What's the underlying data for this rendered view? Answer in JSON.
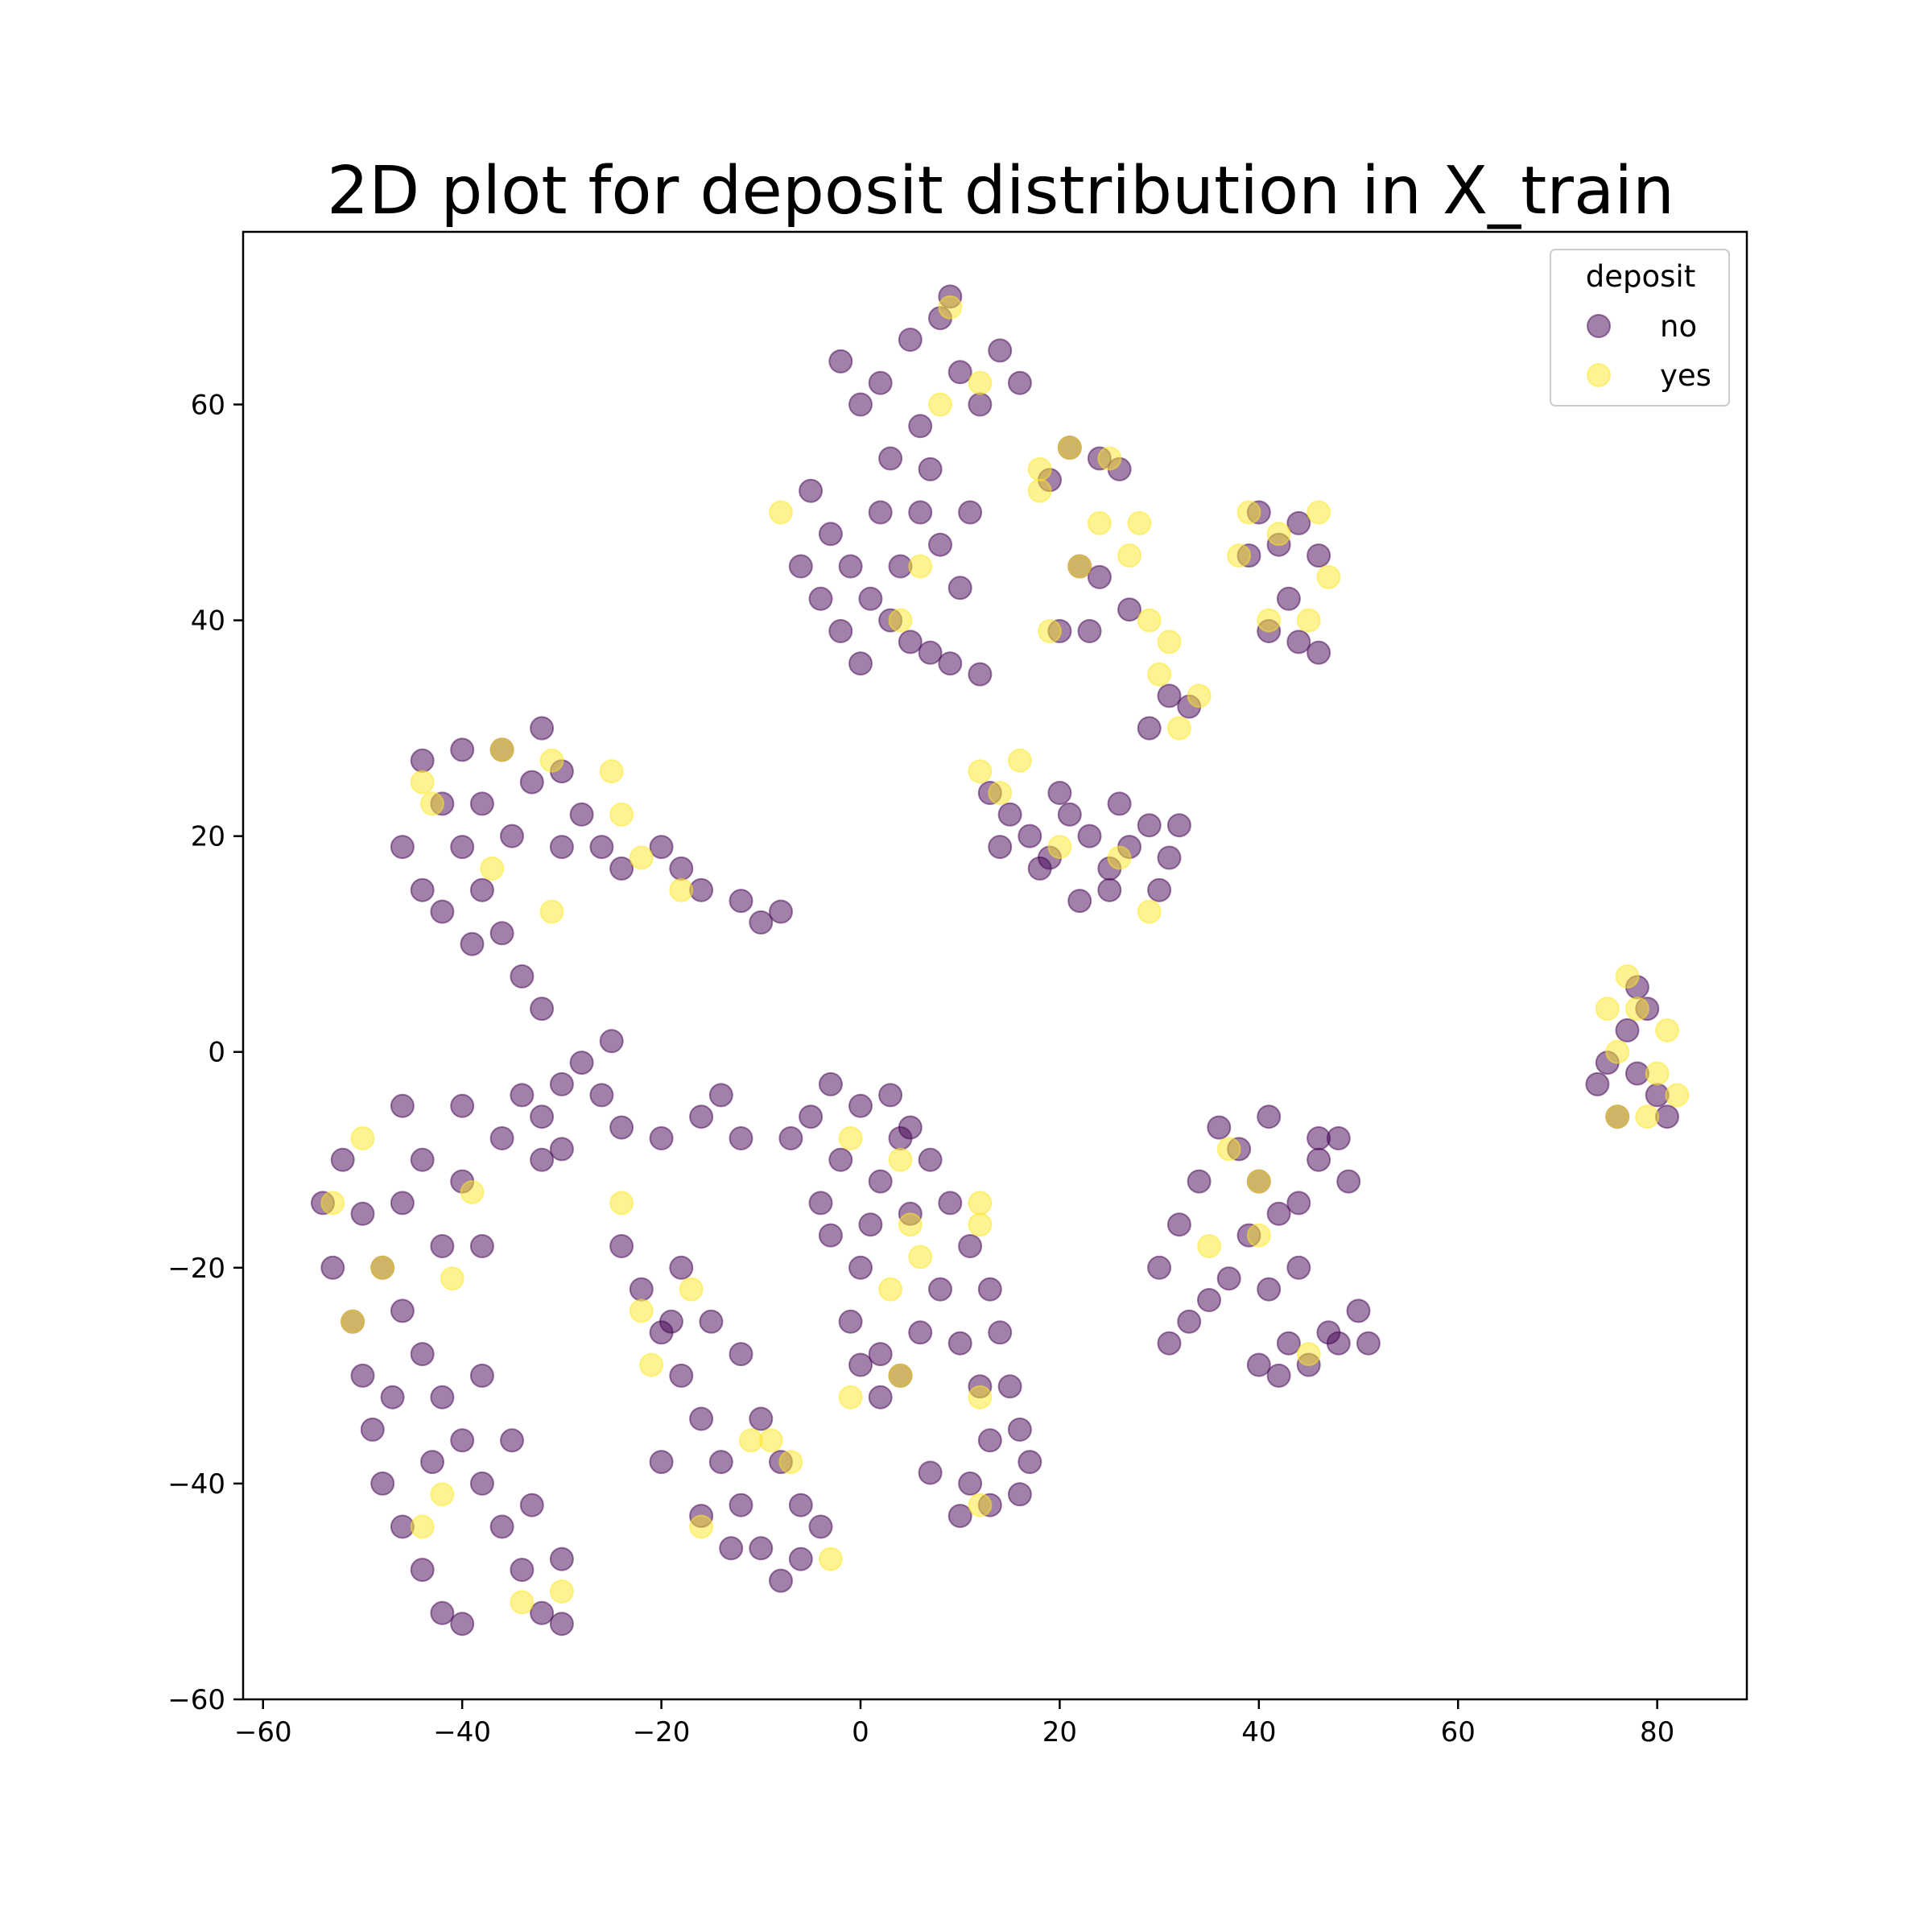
{
  "chart_data": {
    "type": "scatter",
    "title": "2D plot for deposit distribution in X_train",
    "xlabel": "",
    "ylabel": "",
    "xlim": [
      -62,
      89
    ],
    "ylim": [
      -60,
      76
    ],
    "x_ticks": [
      -60,
      -40,
      -20,
      0,
      20,
      40,
      60,
      80
    ],
    "y_ticks": [
      -60,
      -40,
      -20,
      0,
      20,
      40,
      60
    ],
    "x_tick_labels": [
      "−60",
      "−40",
      "−20",
      "0",
      "20",
      "40",
      "60",
      "80"
    ],
    "y_tick_labels": [
      "−60",
      "−40",
      "−20",
      "0",
      "20",
      "40",
      "60"
    ],
    "grid": false,
    "legend": {
      "title": "deposit",
      "placement": "top-right",
      "entries": [
        "no",
        "yes"
      ]
    },
    "colors": {
      "no": "#440154",
      "yes": "#fde725"
    },
    "marker_alpha": 0.5,
    "series": [
      {
        "name": "no",
        "points": [
          [
            2,
            62
          ],
          [
            5,
            66
          ],
          [
            8,
            68
          ],
          [
            10,
            63
          ],
          [
            12,
            60
          ],
          [
            14,
            65
          ],
          [
            6,
            58
          ],
          [
            3,
            55
          ],
          [
            0,
            60
          ],
          [
            -2,
            64
          ],
          [
            16,
            62
          ],
          [
            9,
            70
          ],
          [
            -5,
            52
          ],
          [
            -3,
            48
          ],
          [
            -1,
            45
          ],
          [
            1,
            42
          ],
          [
            3,
            40
          ],
          [
            5,
            38
          ],
          [
            7,
            37
          ],
          [
            4,
            45
          ],
          [
            6,
            50
          ],
          [
            8,
            47
          ],
          [
            10,
            43
          ],
          [
            2,
            50
          ],
          [
            -4,
            42
          ],
          [
            -6,
            45
          ],
          [
            0,
            36
          ],
          [
            9,
            36
          ],
          [
            12,
            35
          ],
          [
            -2,
            39
          ],
          [
            11,
            50
          ],
          [
            7,
            54
          ],
          [
            21,
            56
          ],
          [
            24,
            55
          ],
          [
            26,
            54
          ],
          [
            19,
            53
          ],
          [
            22,
            45
          ],
          [
            24,
            44
          ],
          [
            20,
            39
          ],
          [
            23,
            39
          ],
          [
            27,
            41
          ],
          [
            31,
            33
          ],
          [
            33,
            32
          ],
          [
            29,
            30
          ],
          [
            40,
            50
          ],
          [
            42,
            47
          ],
          [
            44,
            49
          ],
          [
            46,
            46
          ],
          [
            39,
            46
          ],
          [
            41,
            39
          ],
          [
            44,
            38
          ],
          [
            46,
            37
          ],
          [
            43,
            42
          ],
          [
            13,
            24
          ],
          [
            15,
            22
          ],
          [
            17,
            20
          ],
          [
            19,
            18
          ],
          [
            21,
            22
          ],
          [
            23,
            20
          ],
          [
            25,
            17
          ],
          [
            27,
            19
          ],
          [
            29,
            21
          ],
          [
            31,
            18
          ],
          [
            30,
            15
          ],
          [
            22,
            14
          ],
          [
            18,
            17
          ],
          [
            14,
            19
          ],
          [
            20,
            24
          ],
          [
            26,
            23
          ],
          [
            32,
            21
          ],
          [
            25,
            15
          ],
          [
            -44,
            27
          ],
          [
            -42,
            23
          ],
          [
            -40,
            19
          ],
          [
            -38,
            15
          ],
          [
            -36,
            11
          ],
          [
            -34,
            7
          ],
          [
            -32,
            4
          ],
          [
            -46,
            19
          ],
          [
            -44,
            15
          ],
          [
            -40,
            28
          ],
          [
            -36,
            28
          ],
          [
            -32,
            30
          ],
          [
            -30,
            26
          ],
          [
            -28,
            22
          ],
          [
            -26,
            19
          ],
          [
            -24,
            17
          ],
          [
            -20,
            19
          ],
          [
            -18,
            17
          ],
          [
            -16,
            15
          ],
          [
            -12,
            14
          ],
          [
            -10,
            12
          ],
          [
            -8,
            13
          ],
          [
            -38,
            23
          ],
          [
            -35,
            20
          ],
          [
            -30,
            19
          ],
          [
            -33,
            25
          ],
          [
            -42,
            13
          ],
          [
            -39,
            10
          ],
          [
            -52,
            -10
          ],
          [
            -50,
            -15
          ],
          [
            -48,
            -20
          ],
          [
            -46,
            -24
          ],
          [
            -44,
            -28
          ],
          [
            -42,
            -32
          ],
          [
            -40,
            -36
          ],
          [
            -38,
            -40
          ],
          [
            -36,
            -44
          ],
          [
            -34,
            -48
          ],
          [
            -32,
            -52
          ],
          [
            -30,
            -53
          ],
          [
            -51,
            -25
          ],
          [
            -50,
            -30
          ],
          [
            -49,
            -35
          ],
          [
            -48,
            -40
          ],
          [
            -46,
            -44
          ],
          [
            -44,
            -48
          ],
          [
            -42,
            -52
          ],
          [
            -40,
            -53
          ],
          [
            -54,
            -14
          ],
          [
            -53,
            -20
          ],
          [
            -44,
            -10
          ],
          [
            -40,
            -12
          ],
          [
            -38,
            -18
          ],
          [
            -42,
            -18
          ],
          [
            -46,
            -14
          ],
          [
            -36,
            -8
          ],
          [
            -40,
            -5
          ],
          [
            -46,
            -5
          ],
          [
            -47,
            -32
          ],
          [
            -43,
            -38
          ],
          [
            -38,
            -30
          ],
          [
            -35,
            -36
          ],
          [
            -33,
            -42
          ],
          [
            -30,
            -47
          ],
          [
            -34,
            -4
          ],
          [
            -32,
            -6
          ],
          [
            -30,
            -3
          ],
          [
            -28,
            -1
          ],
          [
            -26,
            -4
          ],
          [
            -24,
            -7
          ],
          [
            -30,
            -9
          ],
          [
            -32,
            -10
          ],
          [
            -25,
            1
          ],
          [
            -20,
            -8
          ],
          [
            -16,
            -6
          ],
          [
            -14,
            -4
          ],
          [
            -12,
            -8
          ],
          [
            -24,
            -18
          ],
          [
            -22,
            -22
          ],
          [
            -20,
            -26
          ],
          [
            -18,
            -30
          ],
          [
            -16,
            -34
          ],
          [
            -14,
            -38
          ],
          [
            -12,
            -42
          ],
          [
            -10,
            -46
          ],
          [
            -8,
            -49
          ],
          [
            -6,
            -47
          ],
          [
            -4,
            -44
          ],
          [
            -18,
            -20
          ],
          [
            -15,
            -25
          ],
          [
            -12,
            -28
          ],
          [
            -10,
            -34
          ],
          [
            -8,
            -38
          ],
          [
            -6,
            -42
          ],
          [
            -16,
            -43
          ],
          [
            -20,
            -38
          ],
          [
            -13,
            -46
          ],
          [
            -19,
            -25
          ],
          [
            -3,
            -3
          ],
          [
            0,
            -5
          ],
          [
            3,
            -4
          ],
          [
            5,
            -7
          ],
          [
            7,
            -10
          ],
          [
            9,
            -14
          ],
          [
            11,
            -18
          ],
          [
            13,
            -22
          ],
          [
            14,
            -26
          ],
          [
            15,
            -31
          ],
          [
            16,
            -35
          ],
          [
            17,
            -38
          ],
          [
            16,
            -41
          ],
          [
            13,
            -42
          ],
          [
            10,
            -43
          ],
          [
            7,
            -39
          ],
          [
            4,
            -8
          ],
          [
            2,
            -12
          ],
          [
            1,
            -16
          ],
          [
            0,
            -20
          ],
          [
            -1,
            -25
          ],
          [
            0,
            -29
          ],
          [
            2,
            -32
          ],
          [
            4,
            -30
          ],
          [
            6,
            -26
          ],
          [
            8,
            -22
          ],
          [
            10,
            -27
          ],
          [
            12,
            -31
          ],
          [
            5,
            -15
          ],
          [
            -2,
            -10
          ],
          [
            -5,
            -6
          ],
          [
            -7,
            -8
          ],
          [
            -4,
            -14
          ],
          [
            -3,
            -17
          ],
          [
            2,
            -28
          ],
          [
            11,
            -40
          ],
          [
            13,
            -36
          ],
          [
            36,
            -7
          ],
          [
            38,
            -9
          ],
          [
            40,
            -12
          ],
          [
            42,
            -15
          ],
          [
            44,
            -14
          ],
          [
            46,
            -10
          ],
          [
            48,
            -8
          ],
          [
            41,
            -6
          ],
          [
            39,
            -17
          ],
          [
            37,
            -21
          ],
          [
            35,
            -23
          ],
          [
            33,
            -25
          ],
          [
            31,
            -27
          ],
          [
            30,
            -20
          ],
          [
            32,
            -16
          ],
          [
            34,
            -12
          ],
          [
            44,
            -20
          ],
          [
            41,
            -22
          ],
          [
            42,
            -30
          ],
          [
            45,
            -29
          ],
          [
            48,
            -27
          ],
          [
            50,
            -24
          ],
          [
            51,
            -27
          ],
          [
            47,
            -26
          ],
          [
            43,
            -27
          ],
          [
            40,
            -29
          ],
          [
            46,
            -8
          ],
          [
            49,
            -12
          ],
          [
            75,
            -1
          ],
          [
            77,
            2
          ],
          [
            79,
            4
          ],
          [
            78,
            -2
          ],
          [
            80,
            -4
          ],
          [
            76,
            -6
          ],
          [
            81,
            -6
          ],
          [
            74,
            -3
          ],
          [
            78,
            6
          ]
        ]
      },
      {
        "name": "yes",
        "points": [
          [
            9,
            69
          ],
          [
            12,
            62
          ],
          [
            8,
            60
          ],
          [
            -8,
            50
          ],
          [
            6,
            45
          ],
          [
            4,
            40
          ],
          [
            18,
            54
          ],
          [
            21,
            56
          ],
          [
            25,
            55
          ],
          [
            18,
            52
          ],
          [
            24,
            49
          ],
          [
            27,
            46
          ],
          [
            28,
            49
          ],
          [
            22,
            45
          ],
          [
            29,
            40
          ],
          [
            31,
            38
          ],
          [
            30,
            35
          ],
          [
            32,
            30
          ],
          [
            34,
            33
          ],
          [
            19,
            39
          ],
          [
            39,
            50
          ],
          [
            42,
            48
          ],
          [
            46,
            50
          ],
          [
            38,
            46
          ],
          [
            41,
            40
          ],
          [
            45,
            40
          ],
          [
            47,
            44
          ],
          [
            12,
            26
          ],
          [
            16,
            27
          ],
          [
            14,
            24
          ],
          [
            20,
            19
          ],
          [
            26,
            18
          ],
          [
            29,
            13
          ],
          [
            -44,
            25
          ],
          [
            -43,
            23
          ],
          [
            -36,
            28
          ],
          [
            -31,
            27
          ],
          [
            -25,
            26
          ],
          [
            -24,
            22
          ],
          [
            -37,
            17
          ],
          [
            -31,
            13
          ],
          [
            -18,
            15
          ],
          [
            -22,
            18
          ],
          [
            -53,
            -14
          ],
          [
            -50,
            -8
          ],
          [
            -48,
            -20
          ],
          [
            -39,
            -13
          ],
          [
            -41,
            -21
          ],
          [
            -51,
            -25
          ],
          [
            -44,
            -44
          ],
          [
            -42,
            -41
          ],
          [
            -30,
            -50
          ],
          [
            -34,
            -51
          ],
          [
            -24,
            -14
          ],
          [
            -22,
            -24
          ],
          [
            -21,
            -29
          ],
          [
            -17,
            -22
          ],
          [
            -16,
            -44
          ],
          [
            -11,
            -36
          ],
          [
            -9,
            -36
          ],
          [
            -7,
            -38
          ],
          [
            -3,
            -47
          ],
          [
            -1,
            -8
          ],
          [
            4,
            -10
          ],
          [
            3,
            -22
          ],
          [
            -1,
            -32
          ],
          [
            4,
            -30
          ],
          [
            6,
            -19
          ],
          [
            5,
            -16
          ],
          [
            12,
            -14
          ],
          [
            12,
            -16
          ],
          [
            12,
            -32
          ],
          [
            12,
            -42
          ],
          [
            35,
            -18
          ],
          [
            37,
            -9
          ],
          [
            40,
            -12
          ],
          [
            40,
            -17
          ],
          [
            45,
            -28
          ],
          [
            75,
            4
          ],
          [
            77,
            7
          ],
          [
            76,
            0
          ],
          [
            78,
            4
          ],
          [
            80,
            -2
          ],
          [
            81,
            2
          ],
          [
            82,
            -4
          ],
          [
            76,
            -6
          ],
          [
            79,
            -6
          ]
        ]
      }
    ]
  }
}
